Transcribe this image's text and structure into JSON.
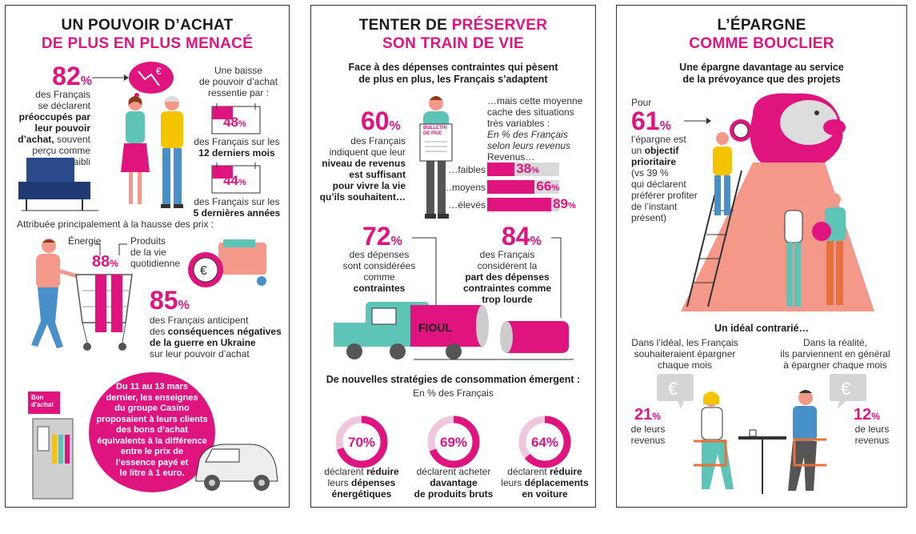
{
  "panel1": {
    "title_line1": "UN POUVOIR D’ACHAT",
    "title_line2": "DE PLUS EN PLUS MENACÉ",
    "stat82": {
      "value": "82",
      "unit": "%",
      "text1": "des Français",
      "text2": "se déclarent",
      "bold1": "préoccupés par",
      "bold2": "leur pouvoir",
      "bold3": "d’achat,",
      "text3": "souvent",
      "text4": "perçu comme",
      "text5": "affaibli"
    },
    "baisse": {
      "line1": "Une baisse",
      "line2": "de pouvoir d’achat",
      "line3": "ressentie par :"
    },
    "stat48": {
      "value": "48",
      "unit": "%",
      "text1": "des Français sur les",
      "bold": "12 derniers mois"
    },
    "stat44": {
      "value": "44",
      "unit": "%",
      "text1": "des Français sur les",
      "bold": "5 dernières années"
    },
    "attribuee": "Attribuée principalement à la hausse des prix :",
    "energie_label": "Énergie",
    "produits_label1": "Produits",
    "produits_label2": "de la vie",
    "produits_label3": "quotidienne",
    "stat88": {
      "value": "88",
      "unit": "%"
    },
    "stat85": {
      "value": "85",
      "unit": "%",
      "text1": "des Français anticipent",
      "text2": "des",
      "bold1": "conséquences négatives",
      "bold2": "de la guerre en Ukraine",
      "text3": "sur leur pouvoir d’achat"
    },
    "casino": {
      "l1": "Du 11 au 13 mars",
      "l2": "dernier, les enseignes",
      "l3": "du groupe Casino",
      "l4": "proposaient à leurs clients",
      "l5": "des bons d’achat",
      "l6": "équivalents à la différence",
      "l7": "entre le prix de",
      "l8": "l’essence payé et",
      "l9": "le litre à 1 euro."
    },
    "bon_label1": "Bon",
    "bon_label2": "d’achat",
    "euro_sign": "€"
  },
  "panel2": {
    "title_line1_a": "TENTER DE ",
    "title_line1_b": "PRÉSERVER",
    "title_line2": "SON TRAIN DE VIE",
    "subtitle1": "Face à des dépenses contraintes qui pèsent",
    "subtitle2": "de plus en plus, les Français s’adaptent",
    "stat60": {
      "value": "60",
      "unit": "%",
      "t1": "des Français",
      "t2": "indiquent que leur",
      "b1": "niveau de revenus",
      "b2": "est suffisant",
      "b3": "pour vivre la vie",
      "b4": "qu’ils souhaitent…"
    },
    "bulletin1": "BULLETIN",
    "bulletin2": "DE PAIE",
    "moyenne": {
      "l1": "…mais cette moyenne",
      "l2": "cache des situations",
      "l3": "très variables :",
      "i1": "En % des Français",
      "i2": "selon leurs revenus",
      "l4": "Revenus…"
    },
    "revenus": [
      {
        "label": "…faibles",
        "value": "38",
        "unit": "%"
      },
      {
        "label": "…moyens",
        "value": "66",
        "unit": "%"
      },
      {
        "label": "…élevés",
        "value": "89",
        "unit": "%"
      }
    ],
    "stat72": {
      "value": "72",
      "unit": "%",
      "t1": "des dépenses",
      "t2": "sont considérées",
      "t3": "comme",
      "b1": "contraintes"
    },
    "stat84": {
      "value": "84",
      "unit": "%",
      "t1": "des Français",
      "t2": "considèrent la",
      "b1": "part des dépenses",
      "b2": "contraintes comme",
      "b3": "trop lourde"
    },
    "fioul": "FIOUL",
    "strategies_title": "De nouvelles stratégies de consommation émergent :",
    "strategies_sub": "En % des Français",
    "strategies": [
      {
        "value": "70",
        "unit": "%",
        "t1": "déclarent",
        "b1": "réduire",
        "t2": "leurs",
        "b2": "dépenses",
        "b3": "énergétiques"
      },
      {
        "value": "69",
        "unit": "%",
        "t1": "déclarent acheter",
        "b1": "davantage",
        "b2": "de produits bruts"
      },
      {
        "value": "64",
        "unit": "%",
        "t1": "déclarent",
        "b1": "réduire",
        "t2": "leurs",
        "b2": "déplacements",
        "b3": "en voiture"
      }
    ]
  },
  "panel3": {
    "title_line1": "L’ÉPARGNE",
    "title_line2": "COMME BOUCLIER",
    "subtitle1": "Une épargne davantage au service",
    "subtitle2": "de la prévoyance que des projets",
    "stat61": {
      "pre": "Pour",
      "value": "61",
      "unit": "%",
      "t1": "l’épargne est",
      "t2": "un",
      "b1": "objectif",
      "b2": "prioritaire",
      "t3": "(vs 39 %",
      "t4": "qui déclarent",
      "t5": "préférer profiter",
      "t6": "de l’instant",
      "t7": "présent)"
    },
    "ideal_title": "Un idéal contrarié…",
    "ideal": {
      "l1": "Dans l’idéal, les Français",
      "l2": "souhaiteraient épargner",
      "l3": "chaque mois"
    },
    "realite": {
      "l1": "Dans la réalité,",
      "l2": "ils parviennent en général",
      "l3": "à épargner chaque mois"
    },
    "stat21": {
      "value": "21",
      "unit": "%",
      "t1": "de leurs",
      "t2": "revenus"
    },
    "stat12": {
      "value": "12",
      "unit": "%",
      "t1": "de leurs",
      "t2": "revenus"
    },
    "euro_sign": "€"
  },
  "colors": {
    "pink": "#e0147f",
    "salmon": "#f4998a",
    "teal": "#5fc4b8",
    "yellow": "#f5c400",
    "blue": "#4a90c8",
    "grey": "#d9d9d9"
  }
}
